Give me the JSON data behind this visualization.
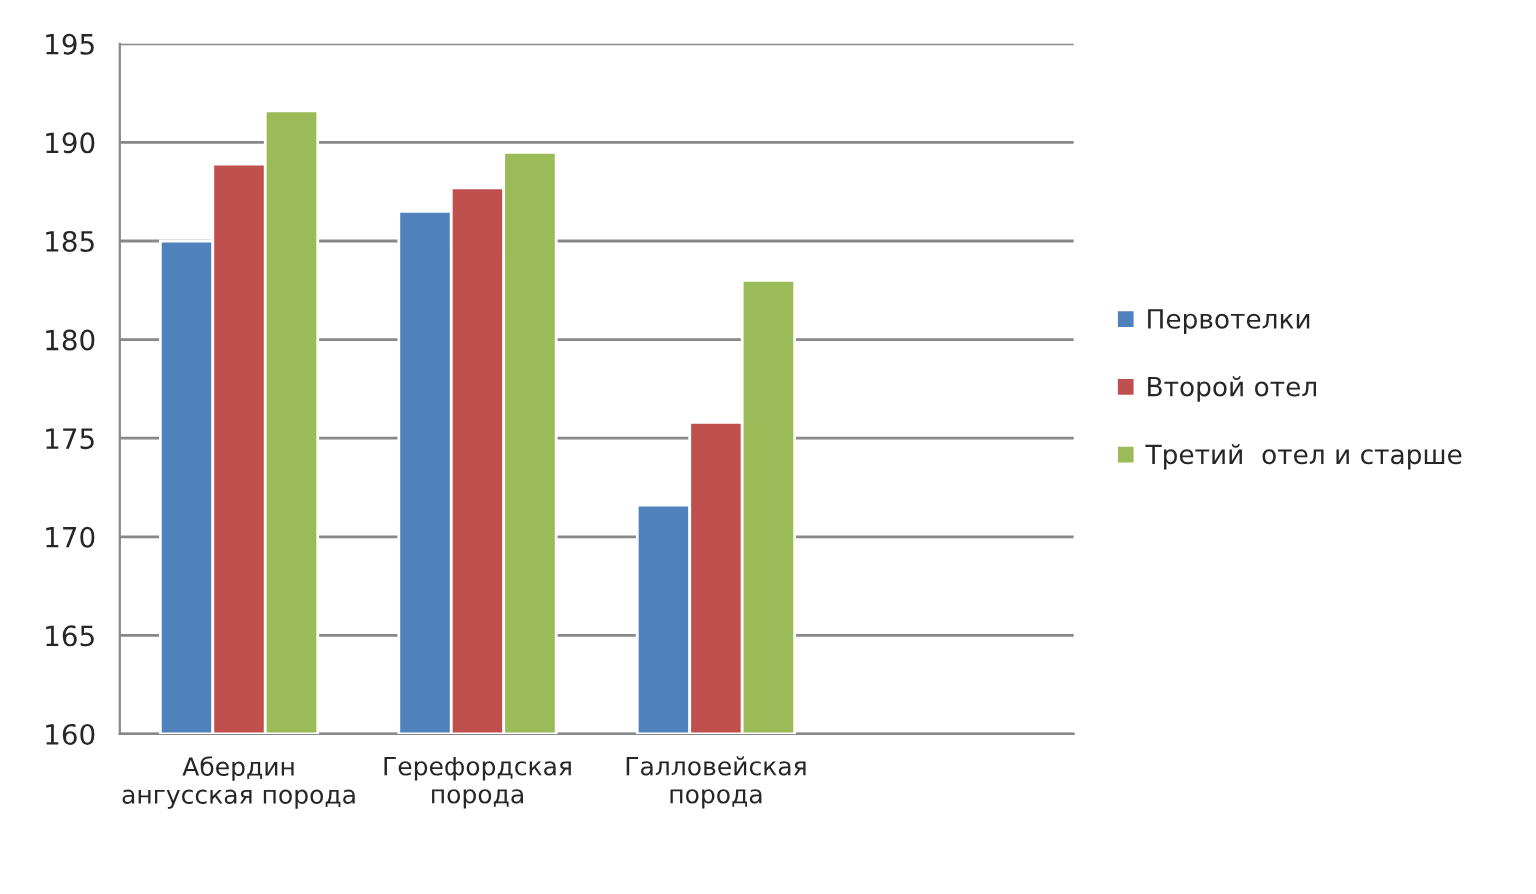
{
  "chart_data": {
    "type": "bar",
    "categories": [
      "Абердин ангусская порода",
      "Герефордская порода",
      "Галловейская порода",
      null
    ],
    "series": [
      {
        "name": "Первотелки",
        "color": "#4f81bd",
        "values": [
          185.0,
          186.5,
          171.6,
          null
        ]
      },
      {
        "name": "Второй отел",
        "color": "#c0504d",
        "values": [
          188.9,
          187.7,
          175.8,
          null
        ]
      },
      {
        "name": "Третий  отел и старше",
        "color": "#9bbb59",
        "values": [
          191.6,
          189.5,
          183.0,
          null
        ]
      }
    ],
    "ylim": [
      160,
      195
    ],
    "yticks": [
      160,
      165,
      170,
      175,
      180,
      185,
      190,
      195
    ],
    "grid": "y",
    "legend": "right"
  }
}
